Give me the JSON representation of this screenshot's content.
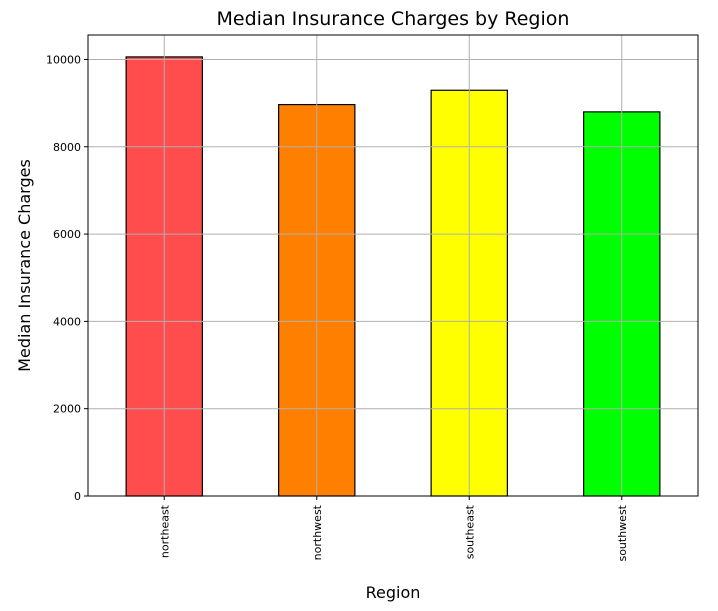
{
  "chart_data": {
    "type": "bar",
    "title": "Median Insurance Charges by Region",
    "xlabel": "Region",
    "ylabel": "Median Insurance Charges",
    "categories": [
      "northeast",
      "northwest",
      "southeast",
      "southwest"
    ],
    "values": [
      10058,
      8966,
      9294,
      8799
    ],
    "colors": [
      "#ff4d4d",
      "#ff7f00",
      "#ffff00",
      "#00ff00"
    ],
    "bar_edge_color": "#000000",
    "ylim": [
      0,
      10560
    ],
    "yticks": [
      0,
      2000,
      4000,
      6000,
      8000,
      10000
    ],
    "ytick_labels": [
      "0",
      "2000",
      "4000",
      "6000",
      "8000",
      "10000"
    ],
    "grid": true,
    "grid_color": "#b0b0b0",
    "legend": "none"
  }
}
